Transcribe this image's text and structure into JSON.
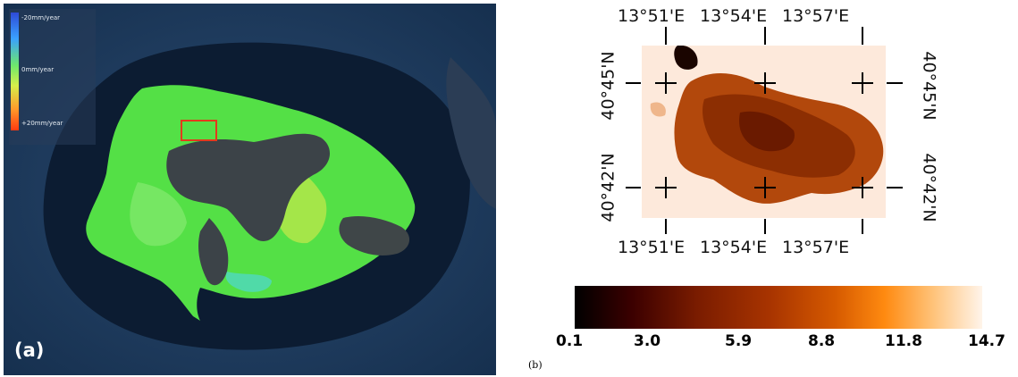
{
  "panel_a": {
    "label": "(a)",
    "legend": {
      "top_label": "-20mm/year",
      "mid_label": "0mm/year",
      "bottom_label": "+20mm/year",
      "colors": [
        "#2e4bd6",
        "#3aa0ff",
        "#6ee86c",
        "#d6ef4a",
        "#ff9a2a",
        "#ff3a10"
      ]
    }
  },
  "panel_b": {
    "label": "(b)",
    "top_ticks": [
      "13°51'E",
      "13°54'E",
      "13°57'E"
    ],
    "bottom_ticks": [
      "13°51'E",
      "13°54'E",
      "13°57'E"
    ],
    "left_ticks": [
      "40°45'N",
      "40°42'N"
    ],
    "right_ticks": [
      "40°45'N",
      "40°42'N"
    ],
    "colorbar": {
      "ticks": [
        "0.1",
        "3.0",
        "5.9",
        "8.8",
        "11.8",
        "14.7"
      ],
      "range": [
        0.1,
        14.7
      ],
      "colors": [
        "#000000",
        "#7a1c00",
        "#d65a00",
        "#ff8a10",
        "#fff4ea"
      ]
    }
  }
}
